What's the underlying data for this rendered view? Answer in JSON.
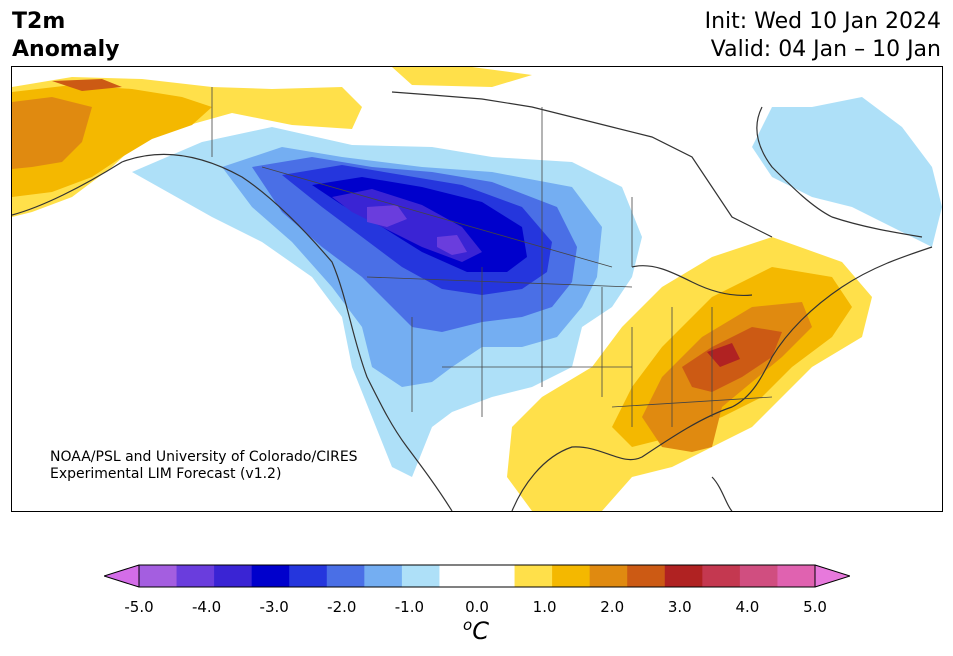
{
  "title": {
    "line1": "T2m",
    "line2": "Anomaly"
  },
  "dates": {
    "init": "Init: Wed 10 Jan 2024",
    "valid": "Valid: 04 Jan – 10 Jan"
  },
  "credit": {
    "line1": "NOAA/PSL and University of Colorado/CIRES",
    "line2": "Experimental LIM Forecast (v1.2)"
  },
  "colorbar": {
    "unit_prefix": "o",
    "unit": "C",
    "under_color": "#d46de8",
    "over_color": "#e779dc",
    "colors": [
      "#a45ee0",
      "#6a3ddd",
      "#3a24d4",
      "#0000cc",
      "#2536dd",
      "#4a6fe6",
      "#74aef2",
      "#aee0f8",
      "#ffffff",
      "#ffffff",
      "#ffe04a",
      "#f4b800",
      "#e08a10",
      "#cc5a14",
      "#b02222",
      "#c43850",
      "#d04e80",
      "#e062b0"
    ],
    "ticks": [
      "-5.0",
      "-4.0",
      "-3.0",
      "-2.0",
      "-1.0",
      "0.0",
      "1.0",
      "2.0",
      "3.0",
      "4.0",
      "5.0"
    ]
  }
}
